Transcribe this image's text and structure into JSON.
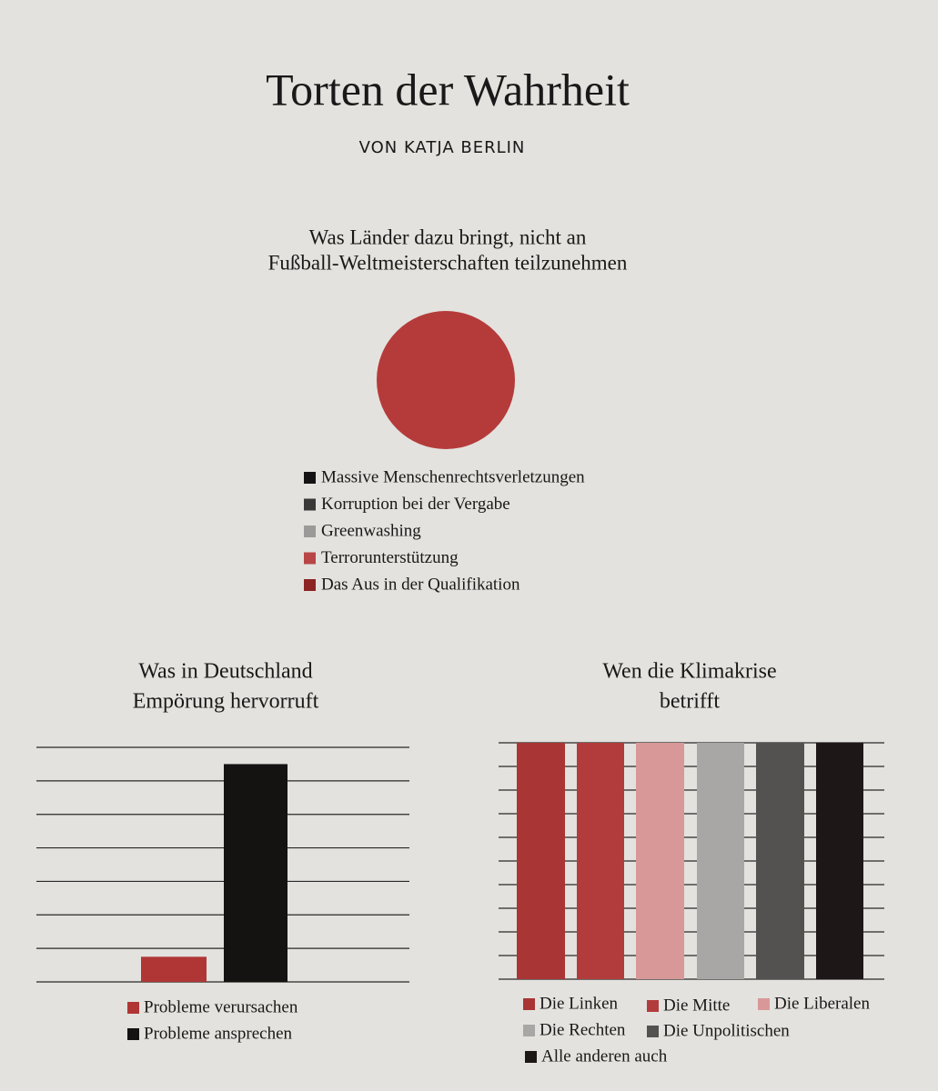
{
  "header": {
    "title": "Torten der Wahrheit",
    "byline": "VON KATJA BERLIN"
  },
  "chart_data": [
    {
      "type": "pie",
      "title": [
        "Was Länder dazu bringt, nicht an",
        "Fußball-Weltmeisterschaften teilzunehmen"
      ],
      "categories": [
        "Massive Menschenrechtsverletzungen",
        "Korruption bei der Vergabe",
        "Greenwashing",
        "Terrorunterstützung",
        "Das Aus in der Qualifikation"
      ],
      "values": [
        0,
        0,
        0,
        0,
        100
      ],
      "colors": [
        "#151313",
        "#3b3838",
        "#9c9a98",
        "#b84646",
        "#8c2424"
      ],
      "pie_color": "#b53b3b"
    },
    {
      "type": "bar",
      "title": [
        "Was in Deutschland",
        "Empörung hervorruft"
      ],
      "series": [
        {
          "name": "Probleme verursachen",
          "color": "#b03636",
          "values": [
            0.75
          ]
        },
        {
          "name": "Probleme ansprechen",
          "color": "#151212",
          "values": [
            6.5
          ]
        }
      ],
      "ylim": [
        0,
        7
      ],
      "yticks": [
        0,
        1,
        2,
        3,
        4,
        5,
        6,
        7
      ],
      "grid": true
    },
    {
      "type": "bar",
      "title": [
        "Wen die Klimakrise",
        "betrifft"
      ],
      "series": [
        {
          "name": "Die Linken",
          "color": "#a93535",
          "values": [
            10
          ]
        },
        {
          "name": "Die Mitte",
          "color": "#b23c3c",
          "values": [
            10
          ]
        },
        {
          "name": "Die Liberalen",
          "color": "#d89898",
          "values": [
            10
          ]
        },
        {
          "name": "Die Rechten",
          "color": "#a9a7a5",
          "values": [
            10
          ]
        },
        {
          "name": "Die Unpolitischen",
          "color": "#545251",
          "values": [
            10
          ]
        },
        {
          "name": "Alle anderen auch",
          "color": "#1e1717",
          "values": [
            10
          ]
        }
      ],
      "ylim": [
        0,
        10
      ],
      "yticks": [
        0,
        1,
        2,
        3,
        4,
        5,
        6,
        7,
        8,
        9,
        10
      ],
      "grid": true
    }
  ]
}
